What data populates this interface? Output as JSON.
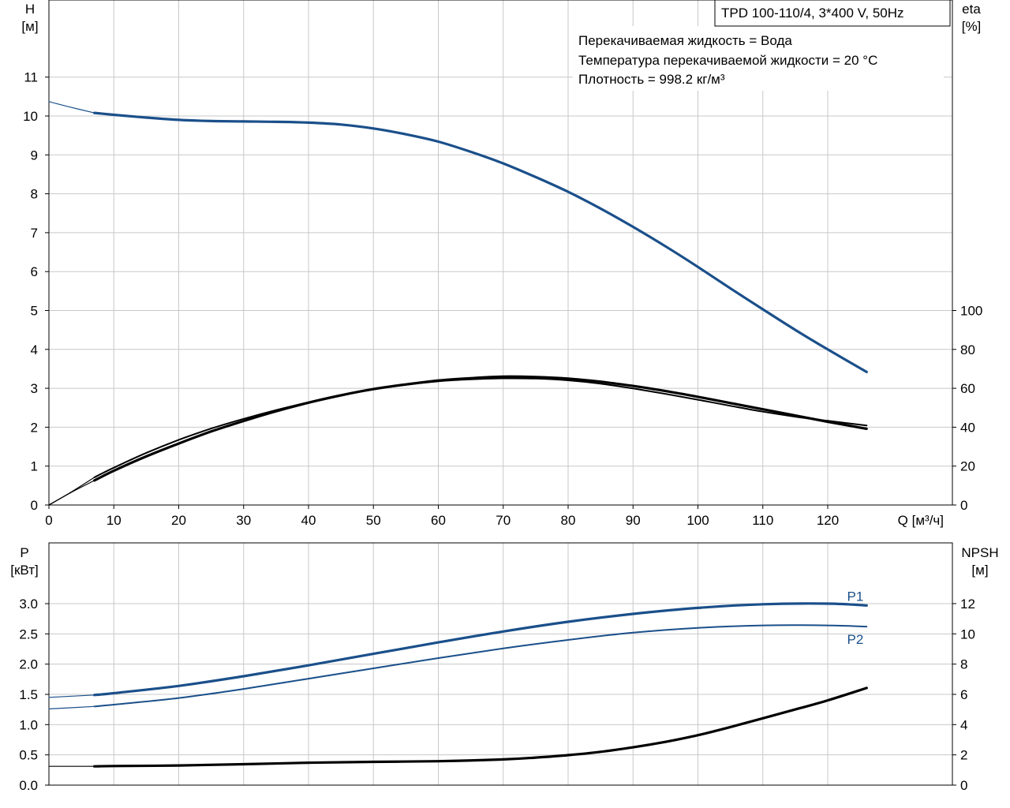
{
  "colors": {
    "blue": "#1a4f8a",
    "black": "#000000",
    "grid": "#c8c8c8"
  },
  "legend_box": {
    "title": "TPD 100-110/4, 3*400 V, 50Hz",
    "lines": [
      "Перекачиваемая жидкость = Вода",
      "Температура перекачиваемой жидкости = 20 °C",
      "Плотность = 998.2 кг/м³"
    ]
  },
  "chart_data": [
    {
      "type": "line",
      "xlabel": "Q [м³/ч]",
      "ylabel_left": [
        "H",
        "[м]"
      ],
      "ylabel_right": [
        "eta",
        "[%]"
      ],
      "xlim": [
        0,
        130
      ],
      "ylim_left": [
        0,
        12
      ],
      "ylim_right": [
        0,
        100
      ],
      "x_ticks": [
        0,
        10,
        20,
        30,
        40,
        50,
        60,
        70,
        80,
        90,
        100,
        110,
        120
      ],
      "y_ticks_left": [
        0,
        1,
        2,
        3,
        4,
        5,
        6,
        7,
        8,
        9,
        10,
        11
      ],
      "y_ticks_right": [
        0,
        20,
        40,
        60,
        80,
        100
      ],
      "grid": true,
      "series": [
        {
          "axis": "left",
          "color": "blue",
          "width": 3.2,
          "x": [
            7,
            10,
            15,
            20,
            25,
            30,
            35,
            40,
            45,
            50,
            55,
            60,
            65,
            70,
            75,
            80,
            85,
            90,
            95,
            100,
            105,
            110,
            115,
            120,
            126
          ],
          "y": [
            10.08,
            10.03,
            9.96,
            9.9,
            9.87,
            9.86,
            9.85,
            9.83,
            9.78,
            9.68,
            9.53,
            9.34,
            9.08,
            8.78,
            8.43,
            8.05,
            7.62,
            7.15,
            6.65,
            6.12,
            5.57,
            5.03,
            4.5,
            4.0,
            3.42
          ]
        },
        {
          "axis": "left",
          "color": "blue",
          "width": 1.2,
          "x": [
            0,
            3,
            7
          ],
          "y": [
            10.37,
            10.24,
            10.08
          ]
        },
        {
          "axis": "right",
          "color": "black",
          "width": 2,
          "x": [
            7,
            10,
            15,
            20,
            25,
            30,
            35,
            40,
            45,
            50,
            55,
            60,
            65,
            70,
            75,
            80,
            85,
            90,
            95,
            100,
            105,
            110,
            115,
            120,
            126
          ],
          "y": [
            14.2,
            19.2,
            26.8,
            33.5,
            39.3,
            44.3,
            48.8,
            52.8,
            56.4,
            59.4,
            61.8,
            63.6,
            64.6,
            65.1,
            65.0,
            64.1,
            62.4,
            59.9,
            57.1,
            54.1,
            51.0,
            48.0,
            45.4,
            43.3,
            40.9
          ]
        },
        {
          "axis": "left",
          "color": "black",
          "width": 3.2,
          "x": [
            7,
            10,
            15,
            20,
            25,
            30,
            35,
            40,
            45,
            50,
            55,
            60,
            65,
            70,
            75,
            80,
            85,
            90,
            95,
            100,
            105,
            110,
            115,
            120,
            126
          ],
          "y": [
            0.63,
            0.88,
            1.25,
            1.58,
            1.89,
            2.16,
            2.41,
            2.63,
            2.82,
            2.98,
            3.1,
            3.2,
            3.26,
            3.3,
            3.29,
            3.25,
            3.17,
            3.06,
            2.93,
            2.78,
            2.62,
            2.46,
            2.3,
            2.14,
            1.96
          ]
        },
        {
          "axis": "left",
          "color": "black",
          "width": 1.2,
          "x": [
            0,
            3.5,
            7
          ],
          "y": [
            0,
            0.33,
            0.63
          ]
        },
        {
          "axis": "right",
          "color": "black",
          "width": 1.2,
          "x": [
            0,
            3.5,
            7
          ],
          "y": [
            0,
            6.8,
            14.2
          ]
        }
      ]
    },
    {
      "type": "line",
      "ylabel_left": [
        "P",
        "[кВт]"
      ],
      "ylabel_right": [
        "NPSH",
        "[м]"
      ],
      "xlim": [
        0,
        130
      ],
      "ylim_left": [
        0,
        3.4
      ],
      "ylim_right": [
        0,
        13.6
      ],
      "x_ticks": [
        0,
        10,
        20,
        30,
        40,
        50,
        60,
        70,
        80,
        90,
        100,
        110,
        120
      ],
      "y_ticks_left": [
        0.0,
        0.5,
        1.0,
        1.5,
        2.0,
        2.5,
        3.0
      ],
      "y_tick_labels_left": [
        "0.0",
        "0.5",
        "1.0",
        "1.5",
        "2.0",
        "2.5",
        "3.0"
      ],
      "y_ticks_right": [
        0,
        2,
        4,
        6,
        8,
        10,
        12
      ],
      "grid": true,
      "series": [
        {
          "name": "P1",
          "axis": "left",
          "color": "blue",
          "width": 3.2,
          "x": [
            7,
            10,
            20,
            30,
            40,
            50,
            60,
            70,
            80,
            90,
            100,
            110,
            120,
            126
          ],
          "y": [
            1.49,
            1.52,
            1.64,
            1.8,
            1.98,
            2.17,
            2.36,
            2.54,
            2.7,
            2.83,
            2.93,
            2.99,
            3.0,
            2.97
          ]
        },
        {
          "name": "",
          "axis": "left",
          "color": "blue",
          "width": 1.2,
          "x": [
            0,
            7
          ],
          "y": [
            1.45,
            1.49
          ]
        },
        {
          "name": "P2",
          "axis": "left",
          "color": "blue",
          "width": 2,
          "x": [
            7,
            10,
            20,
            30,
            40,
            50,
            60,
            70,
            80,
            90,
            100,
            110,
            120,
            126
          ],
          "y": [
            1.3,
            1.33,
            1.44,
            1.59,
            1.76,
            1.93,
            2.1,
            2.26,
            2.4,
            2.52,
            2.6,
            2.64,
            2.64,
            2.62
          ]
        },
        {
          "name": "",
          "axis": "left",
          "color": "blue",
          "width": 1.2,
          "x": [
            0,
            7
          ],
          "y": [
            1.26,
            1.3
          ]
        },
        {
          "name": "",
          "axis": "right",
          "color": "black",
          "width": 3.2,
          "x": [
            7,
            10,
            20,
            30,
            40,
            50,
            60,
            70,
            75,
            80,
            85,
            90,
            95,
            100,
            105,
            110,
            115,
            120,
            126
          ],
          "y": [
            1.24,
            1.26,
            1.3,
            1.38,
            1.48,
            1.54,
            1.58,
            1.7,
            1.82,
            1.98,
            2.2,
            2.5,
            2.86,
            3.3,
            3.84,
            4.42,
            5.0,
            5.6,
            6.42
          ]
        },
        {
          "name": "",
          "axis": "right",
          "color": "black",
          "width": 1.2,
          "x": [
            0,
            7
          ],
          "y": [
            1.24,
            1.24
          ]
        }
      ]
    }
  ]
}
